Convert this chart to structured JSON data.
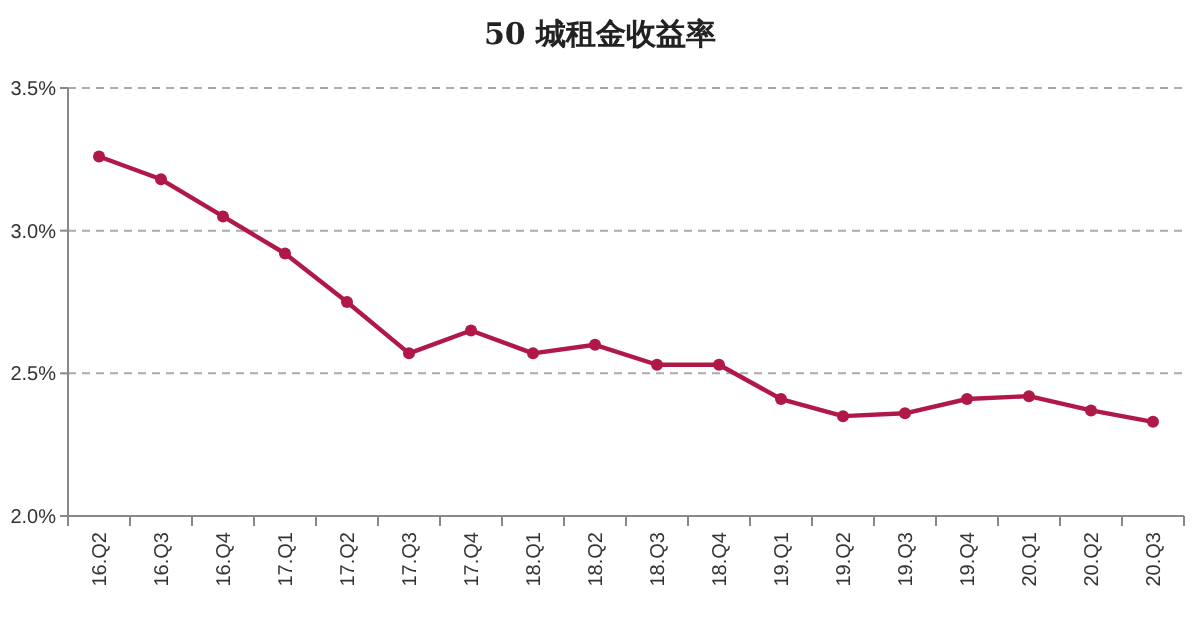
{
  "chart_data": {
    "type": "line",
    "title": "50 城租金收益率",
    "categories": [
      "16.Q2",
      "16.Q3",
      "16.Q4",
      "17.Q1",
      "17.Q2",
      "17.Q3",
      "17.Q4",
      "18.Q1",
      "18.Q2",
      "18.Q3",
      "18.Q4",
      "19.Q1",
      "19.Q2",
      "19.Q3",
      "19.Q4",
      "20.Q1",
      "20.Q2",
      "20.Q3"
    ],
    "series": [
      {
        "color": "#b01848",
        "values": [
          3.26,
          3.18,
          3.05,
          2.92,
          2.75,
          2.57,
          2.65,
          2.57,
          2.6,
          2.53,
          2.53,
          2.41,
          2.35,
          2.36,
          2.41,
          2.42,
          2.37,
          2.33
        ]
      }
    ],
    "ylim": [
      2.0,
      3.5
    ],
    "yticks": [
      {
        "value": 2.0,
        "label": "2.0%"
      },
      {
        "value": 2.5,
        "label": "2.5%"
      },
      {
        "value": 3.0,
        "label": "3.0%"
      },
      {
        "value": 3.5,
        "label": "3.5%"
      }
    ],
    "grid": "y",
    "marker": "circle",
    "line_style": "solid"
  }
}
